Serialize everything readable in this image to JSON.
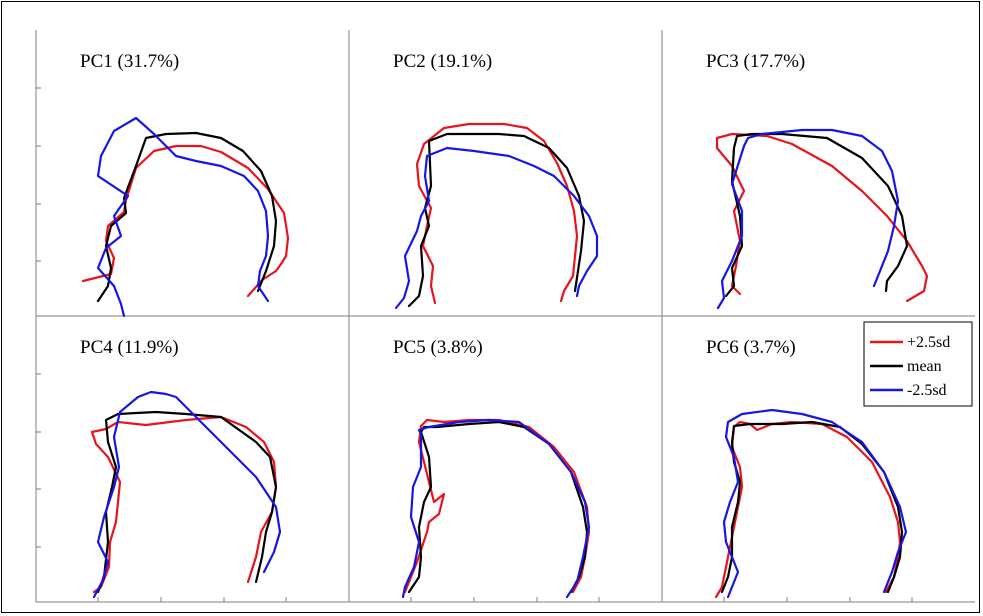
{
  "colors": {
    "plus": "#e8141b",
    "mean": "#000000",
    "minus": "#1616e6",
    "axis": "#7f7f7f"
  },
  "legend": {
    "items": [
      {
        "key": "plus",
        "label": "+2.5sd"
      },
      {
        "key": "mean",
        "label": "mean"
      },
      {
        "key": "minus",
        "label": "-2.5sd"
      }
    ]
  },
  "chart_data": [
    {
      "type": "line",
      "title": "PC1 (31.7%)",
      "series": [
        {
          "name": "+2.5sd",
          "key": "plus",
          "x": [
            47,
            75,
            78,
            70,
            72,
            88,
            90,
            100,
            118,
            140,
            165,
            185,
            212,
            232,
            248,
            252,
            250,
            245,
            240,
            226,
            212
          ],
          "y": [
            35,
            42,
            58,
            75,
            90,
            104,
            116,
            148,
            165,
            170,
            170,
            164,
            148,
            127,
            103,
            78,
            60,
            52,
            45,
            36,
            20
          ]
        },
        {
          "name": "mean",
          "key": "mean",
          "x": [
            62,
            72,
            75,
            70,
            75,
            90,
            88,
            100,
            110,
            130,
            160,
            185,
            207,
            225,
            236,
            240,
            238,
            230,
            222
          ],
          "y": [
            15,
            30,
            48,
            70,
            90,
            103,
            118,
            150,
            178,
            182,
            183,
            178,
            165,
            145,
            120,
            95,
            70,
            45,
            25
          ]
        },
        {
          "name": "-2.5sd",
          "key": "minus",
          "x": [
            88,
            85,
            78,
            62,
            70,
            85,
            78,
            92,
            62,
            65,
            78,
            100,
            118,
            140,
            160,
            185,
            208,
            222,
            230,
            232,
            230,
            224,
            222,
            232
          ],
          "y": [
            0,
            12,
            30,
            48,
            68,
            80,
            100,
            120,
            140,
            160,
            185,
            198,
            182,
            160,
            155,
            150,
            140,
            125,
            105,
            80,
            60,
            45,
            30,
            15
          ]
        }
      ]
    },
    {
      "type": "line",
      "title": "PC2 (19.1%)",
      "series": [
        {
          "name": "+2.5sd",
          "key": "plus",
          "x": [
            86,
            82,
            84,
            74,
            78,
            82,
            70,
            68,
            75,
            95,
            120,
            155,
            178,
            195,
            208,
            218,
            225,
            228,
            226,
            224,
            215,
            212
          ],
          "y": [
            13,
            30,
            50,
            70,
            90,
            108,
            130,
            152,
            172,
            188,
            192,
            192,
            188,
            175,
            153,
            130,
            105,
            80,
            60,
            40,
            25,
            15
          ]
        },
        {
          "name": "mean",
          "key": "mean",
          "x": [
            60,
            70,
            74,
            72,
            80,
            76,
            82,
            80,
            98,
            125,
            150,
            175,
            200,
            218,
            230,
            235,
            232,
            226
          ],
          "y": [
            10,
            20,
            40,
            70,
            90,
            108,
            130,
            175,
            182,
            182,
            182,
            180,
            168,
            148,
            120,
            95,
            65,
            25
          ]
        },
        {
          "name": "-2.5sd",
          "key": "minus",
          "x": [
            47,
            55,
            60,
            56,
            68,
            72,
            80,
            76,
            78,
            98,
            125,
            160,
            185,
            205,
            225,
            240,
            248,
            248,
            238,
            230,
            228
          ],
          "y": [
            8,
            18,
            35,
            60,
            85,
            100,
            115,
            140,
            160,
            168,
            165,
            160,
            150,
            140,
            120,
            100,
            80,
            60,
            45,
            30,
            20
          ]
        }
      ]
    },
    {
      "type": "line",
      "title": "PC3 (17.7%)",
      "series": [
        {
          "name": "+2.5sd",
          "key": "plus",
          "x": [
            78,
            70,
            74,
            78,
            72,
            82,
            70,
            55,
            55,
            70,
            105,
            130,
            170,
            200,
            225,
            245,
            260,
            265,
            262,
            245
          ],
          "y": [
            22,
            30,
            50,
            75,
            105,
            125,
            150,
            168,
            178,
            182,
            180,
            172,
            150,
            125,
            100,
            75,
            50,
            40,
            25,
            15
          ]
        },
        {
          "name": "mean",
          "key": "mean",
          "x": [
            64,
            72,
            70,
            80,
            78,
            70,
            72,
            75,
            90,
            120,
            165,
            200,
            226,
            240,
            245,
            236,
            225,
            224
          ],
          "y": [
            20,
            30,
            48,
            70,
            100,
            135,
            168,
            180,
            182,
            182,
            178,
            158,
            130,
            100,
            70,
            50,
            35,
            25
          ]
        },
        {
          "name": "-2.5sd",
          "key": "minus",
          "x": [
            56,
            62,
            60,
            70,
            80,
            80,
            70,
            82,
            86,
            100,
            140,
            170,
            200,
            220,
            230,
            236,
            232,
            226,
            218,
            212
          ],
          "y": [
            8,
            18,
            35,
            55,
            80,
            105,
            132,
            170,
            178,
            182,
            186,
            186,
            180,
            165,
            145,
            115,
            90,
            65,
            45,
            30
          ]
        }
      ]
    },
    {
      "type": "line",
      "title": "PC4 (11.9%)",
      "series": [
        {
          "name": "+2.5sd",
          "key": "plus",
          "x": [
            212,
            220,
            225,
            236,
            240,
            238,
            228,
            210,
            185,
            150,
            110,
            82,
            70,
            56,
            60,
            72,
            84,
            82,
            80,
            74,
            73,
            65,
            58
          ],
          "y": [
            20,
            45,
            70,
            90,
            115,
            140,
            160,
            175,
            185,
            182,
            177,
            180,
            173,
            170,
            158,
            145,
            120,
            100,
            80,
            60,
            35,
            15,
            10
          ]
        },
        {
          "name": "mean",
          "key": "mean",
          "x": [
            220,
            226,
            230,
            236,
            240,
            234,
            220,
            185,
            150,
            120,
            82,
            70,
            72,
            80,
            76,
            70,
            72,
            68,
            62
          ],
          "y": [
            20,
            45,
            70,
            90,
            115,
            145,
            160,
            185,
            188,
            190,
            188,
            182,
            160,
            135,
            115,
            90,
            60,
            25,
            10
          ]
        },
        {
          "name": "-2.5sd",
          "key": "minus",
          "x": [
            228,
            238,
            244,
            240,
            230,
            220,
            205,
            180,
            160,
            140,
            130,
            115,
            102,
            84,
            78,
            83,
            78,
            68,
            62,
            72,
            66,
            58
          ],
          "y": [
            30,
            50,
            70,
            95,
            110,
            125,
            140,
            165,
            185,
            205,
            208,
            210,
            205,
            190,
            165,
            135,
            115,
            85,
            60,
            40,
            20,
            5
          ]
        }
      ]
    },
    {
      "type": "line",
      "title": "PC5 (3.8%)",
      "series": [
        {
          "name": "+2.5sd",
          "key": "plus",
          "x": [
            224,
            232,
            236,
            240,
            238,
            225,
            205,
            180,
            150,
            120,
            95,
            78,
            72,
            70,
            75,
            80,
            85,
            95,
            90,
            80,
            78,
            68,
            62,
            56
          ],
          "y": [
            10,
            25,
            45,
            70,
            95,
            130,
            155,
            175,
            182,
            182,
            180,
            182,
            176,
            160,
            140,
            120,
            100,
            108,
            88,
            80,
            70,
            40,
            25,
            10
          ]
        },
        {
          "name": "mean",
          "key": "mean",
          "x": [
            222,
            230,
            236,
            238,
            234,
            222,
            200,
            175,
            150,
            120,
            88,
            75,
            72,
            80,
            82,
            75,
            70,
            72,
            70,
            60
          ],
          "y": [
            10,
            25,
            45,
            70,
            95,
            130,
            158,
            175,
            180,
            178,
            175,
            175,
            170,
            145,
            115,
            100,
            75,
            45,
            25,
            10
          ]
        },
        {
          "name": "-2.5sd",
          "key": "minus",
          "x": [
            218,
            228,
            234,
            240,
            236,
            222,
            200,
            170,
            140,
            110,
            80,
            70,
            72,
            72,
            64,
            62,
            70,
            65,
            56,
            54
          ],
          "y": [
            5,
            20,
            45,
            75,
            100,
            130,
            158,
            180,
            182,
            180,
            175,
            172,
            168,
            135,
            115,
            85,
            60,
            35,
            15,
            5
          ]
        }
      ]
    },
    {
      "type": "line",
      "title": "PC6 (3.7%)",
      "series": [
        {
          "name": "+2.5sd",
          "key": "plus",
          "x": [
            224,
            232,
            236,
            238,
            236,
            228,
            210,
            185,
            160,
            130,
            110,
            95,
            88,
            78,
            72,
            70,
            78,
            80,
            76,
            72,
            68,
            64,
            60,
            54
          ],
          "y": [
            10,
            25,
            45,
            60,
            80,
            105,
            140,
            165,
            178,
            180,
            178,
            172,
            178,
            180,
            175,
            155,
            135,
            115,
            95,
            75,
            55,
            35,
            15,
            5
          ]
        },
        {
          "name": "mean",
          "key": "mean",
          "x": [
            226,
            232,
            238,
            240,
            236,
            222,
            200,
            178,
            150,
            120,
            88,
            72,
            70,
            72,
            78,
            76,
            70,
            70,
            66,
            60
          ],
          "y": [
            10,
            25,
            45,
            70,
            95,
            130,
            158,
            175,
            180,
            178,
            178,
            176,
            160,
            140,
            120,
            100,
            75,
            45,
            25,
            10
          ]
        },
        {
          "name": "-2.5sd",
          "key": "minus",
          "x": [
            222,
            230,
            236,
            244,
            238,
            222,
            200,
            170,
            140,
            110,
            80,
            66,
            64,
            72,
            76,
            68,
            62,
            64,
            70,
            76,
            70,
            66
          ],
          "y": [
            10,
            30,
            50,
            70,
            95,
            130,
            160,
            180,
            188,
            192,
            188,
            180,
            165,
            145,
            120,
            100,
            80,
            60,
            45,
            30,
            15,
            5
          ]
        }
      ]
    }
  ]
}
